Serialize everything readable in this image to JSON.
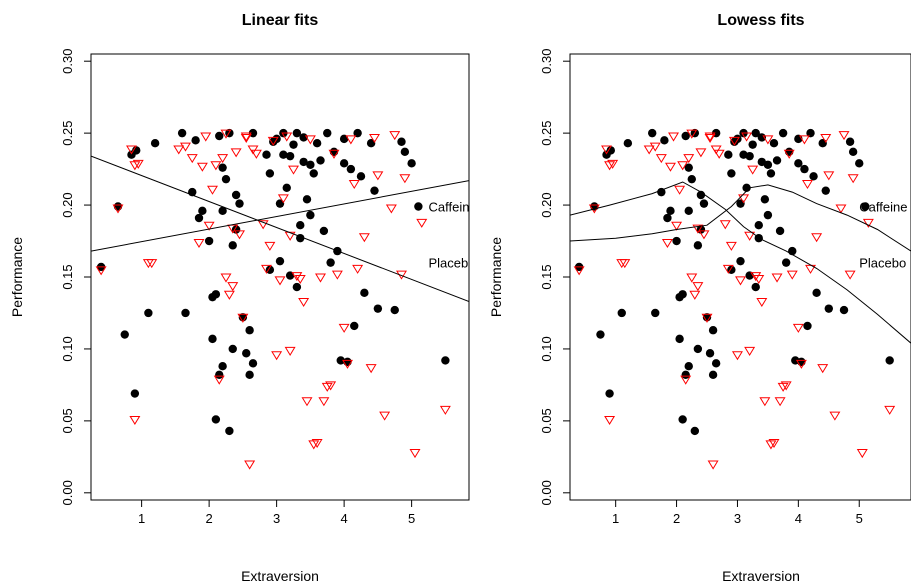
{
  "chart_data": [
    {
      "type": "scatter",
      "title": "Linear fits",
      "xlabel": "Extraversion",
      "ylabel": "Performance",
      "xlim": [
        0.25,
        5.85
      ],
      "ylim": [
        -0.005,
        0.305
      ],
      "xticks": [
        "1",
        "2",
        "3",
        "4",
        "5"
      ],
      "yticks": [
        "0.00",
        "0.05",
        "0.10",
        "0.15",
        "0.20",
        "0.25",
        "0.30"
      ],
      "grid": false,
      "fit": "linear",
      "fit_lines": [
        {
          "name": "Caffeine",
          "x": [
            0.25,
            5.85
          ],
          "y": [
            0.168,
            0.217
          ]
        },
        {
          "name": "Placebo",
          "x": [
            0.25,
            5.85
          ],
          "y": [
            0.234,
            0.133
          ]
        }
      ],
      "annotations": [
        {
          "text": "Caffeine",
          "x": 5.25,
          "y": 0.199
        },
        {
          "text": "Placebo",
          "x": 5.25,
          "y": 0.16
        }
      ]
    },
    {
      "type": "scatter",
      "title": "Lowess fits",
      "xlabel": "Extraversion",
      "ylabel": "Performance",
      "xlim": [
        0.25,
        5.85
      ],
      "ylim": [
        -0.005,
        0.305
      ],
      "xticks": [
        "1",
        "2",
        "3",
        "4",
        "5"
      ],
      "yticks": [
        "0.00",
        "0.05",
        "0.10",
        "0.15",
        "0.20",
        "0.25",
        "0.30"
      ],
      "grid": false,
      "fit": "lowess",
      "fit_lines": [
        {
          "name": "Caffeine",
          "x": [
            0.25,
            1.0,
            1.6,
            2.0,
            2.5,
            2.9,
            3.2,
            3.5,
            3.9,
            4.3,
            4.8,
            5.3,
            5.85
          ],
          "y": [
            0.175,
            0.177,
            0.18,
            0.183,
            0.186,
            0.199,
            0.212,
            0.214,
            0.209,
            0.201,
            0.193,
            0.183,
            0.168
          ]
        },
        {
          "name": "Placebo",
          "x": [
            0.25,
            0.9,
            1.6,
            2.1,
            2.4,
            2.8,
            3.1,
            3.4,
            3.8,
            4.3,
            4.8,
            5.3,
            5.85
          ],
          "y": [
            0.193,
            0.2,
            0.208,
            0.216,
            0.209,
            0.197,
            0.185,
            0.176,
            0.168,
            0.156,
            0.141,
            0.124,
            0.104
          ]
        }
      ],
      "annotations": [
        {
          "text": "Caffeine",
          "x": 5.0,
          "y": 0.199
        },
        {
          "text": "Placebo",
          "x": 5.0,
          "y": 0.16
        }
      ]
    }
  ],
  "series": [
    {
      "name": "Caffeine",
      "color": "#000000",
      "marker": "filled-circle",
      "x": [
        0.4,
        0.65,
        0.75,
        0.85,
        0.9,
        0.92,
        1.1,
        1.2,
        1.6,
        1.65,
        1.75,
        1.8,
        1.85,
        1.9,
        2.0,
        2.05,
        2.05,
        2.1,
        2.1,
        2.15,
        2.15,
        2.2,
        2.2,
        2.2,
        2.25,
        2.3,
        2.3,
        2.35,
        2.35,
        2.4,
        2.4,
        2.45,
        2.5,
        2.55,
        2.6,
        2.6,
        2.65,
        2.65,
        2.85,
        2.9,
        2.9,
        2.95,
        3.0,
        3.05,
        3.05,
        3.1,
        3.1,
        3.15,
        3.2,
        3.2,
        3.25,
        3.3,
        3.3,
        3.35,
        3.35,
        3.4,
        3.4,
        3.45,
        3.5,
        3.5,
        3.55,
        3.6,
        3.65,
        3.7,
        3.75,
        3.8,
        3.85,
        3.9,
        3.95,
        4.0,
        4.0,
        4.05,
        4.1,
        4.15,
        4.2,
        4.25,
        4.3,
        4.4,
        4.45,
        4.5,
        4.75,
        4.85,
        4.9,
        5.0,
        5.1,
        5.5
      ],
      "y": [
        0.157,
        0.199,
        0.11,
        0.235,
        0.069,
        0.238,
        0.125,
        0.243,
        0.25,
        0.125,
        0.209,
        0.245,
        0.191,
        0.196,
        0.175,
        0.107,
        0.136,
        0.138,
        0.051,
        0.248,
        0.082,
        0.226,
        0.196,
        0.088,
        0.218,
        0.043,
        0.25,
        0.1,
        0.172,
        0.207,
        0.183,
        0.201,
        0.122,
        0.097,
        0.113,
        0.082,
        0.25,
        0.09,
        0.235,
        0.222,
        0.155,
        0.244,
        0.246,
        0.161,
        0.201,
        0.25,
        0.235,
        0.212,
        0.151,
        0.234,
        0.242,
        0.143,
        0.25,
        0.177,
        0.186,
        0.247,
        0.23,
        0.204,
        0.193,
        0.228,
        0.222,
        0.243,
        0.231,
        0.182,
        0.25,
        0.16,
        0.237,
        0.168,
        0.092,
        0.229,
        0.246,
        0.091,
        0.225,
        0.116,
        0.25,
        0.22,
        0.139,
        0.243,
        0.21,
        0.128,
        0.127,
        0.244,
        0.237,
        0.229,
        0.199,
        0.092
      ]
    },
    {
      "name": "Placebo",
      "color": "#ff0000",
      "marker": "open-triangle-down",
      "x": [
        0.4,
        0.65,
        0.85,
        0.9,
        0.9,
        0.95,
        1.1,
        1.15,
        1.55,
        1.65,
        1.75,
        1.85,
        1.9,
        1.95,
        2.0,
        2.05,
        2.1,
        2.15,
        2.2,
        2.25,
        2.25,
        2.3,
        2.35,
        2.35,
        2.4,
        2.45,
        2.5,
        2.55,
        2.55,
        2.6,
        2.65,
        2.7,
        2.8,
        2.85,
        2.9,
        2.95,
        3.0,
        3.05,
        3.1,
        3.15,
        3.2,
        3.2,
        3.25,
        3.3,
        3.35,
        3.4,
        3.45,
        3.5,
        3.55,
        3.6,
        3.65,
        3.7,
        3.75,
        3.8,
        3.85,
        3.9,
        4.0,
        4.05,
        4.1,
        4.15,
        4.2,
        4.3,
        4.4,
        4.45,
        4.5,
        4.6,
        4.7,
        4.75,
        4.85,
        4.9,
        5.05,
        5.15,
        5.5
      ],
      "y": [
        0.155,
        0.198,
        0.239,
        0.228,
        0.051,
        0.229,
        0.16,
        0.16,
        0.239,
        0.241,
        0.233,
        0.174,
        0.227,
        0.248,
        0.186,
        0.211,
        0.228,
        0.079,
        0.233,
        0.15,
        0.25,
        0.138,
        0.184,
        0.144,
        0.237,
        0.18,
        0.122,
        0.248,
        0.247,
        0.02,
        0.239,
        0.236,
        0.187,
        0.156,
        0.172,
        0.245,
        0.096,
        0.148,
        0.205,
        0.248,
        0.179,
        0.099,
        0.225,
        0.151,
        0.149,
        0.133,
        0.064,
        0.246,
        0.034,
        0.035,
        0.15,
        0.064,
        0.074,
        0.075,
        0.236,
        0.152,
        0.115,
        0.09,
        0.246,
        0.215,
        0.156,
        0.178,
        0.087,
        0.247,
        0.221,
        0.054,
        0.198,
        0.249,
        0.152,
        0.219,
        0.028,
        0.188,
        0.058
      ]
    }
  ]
}
